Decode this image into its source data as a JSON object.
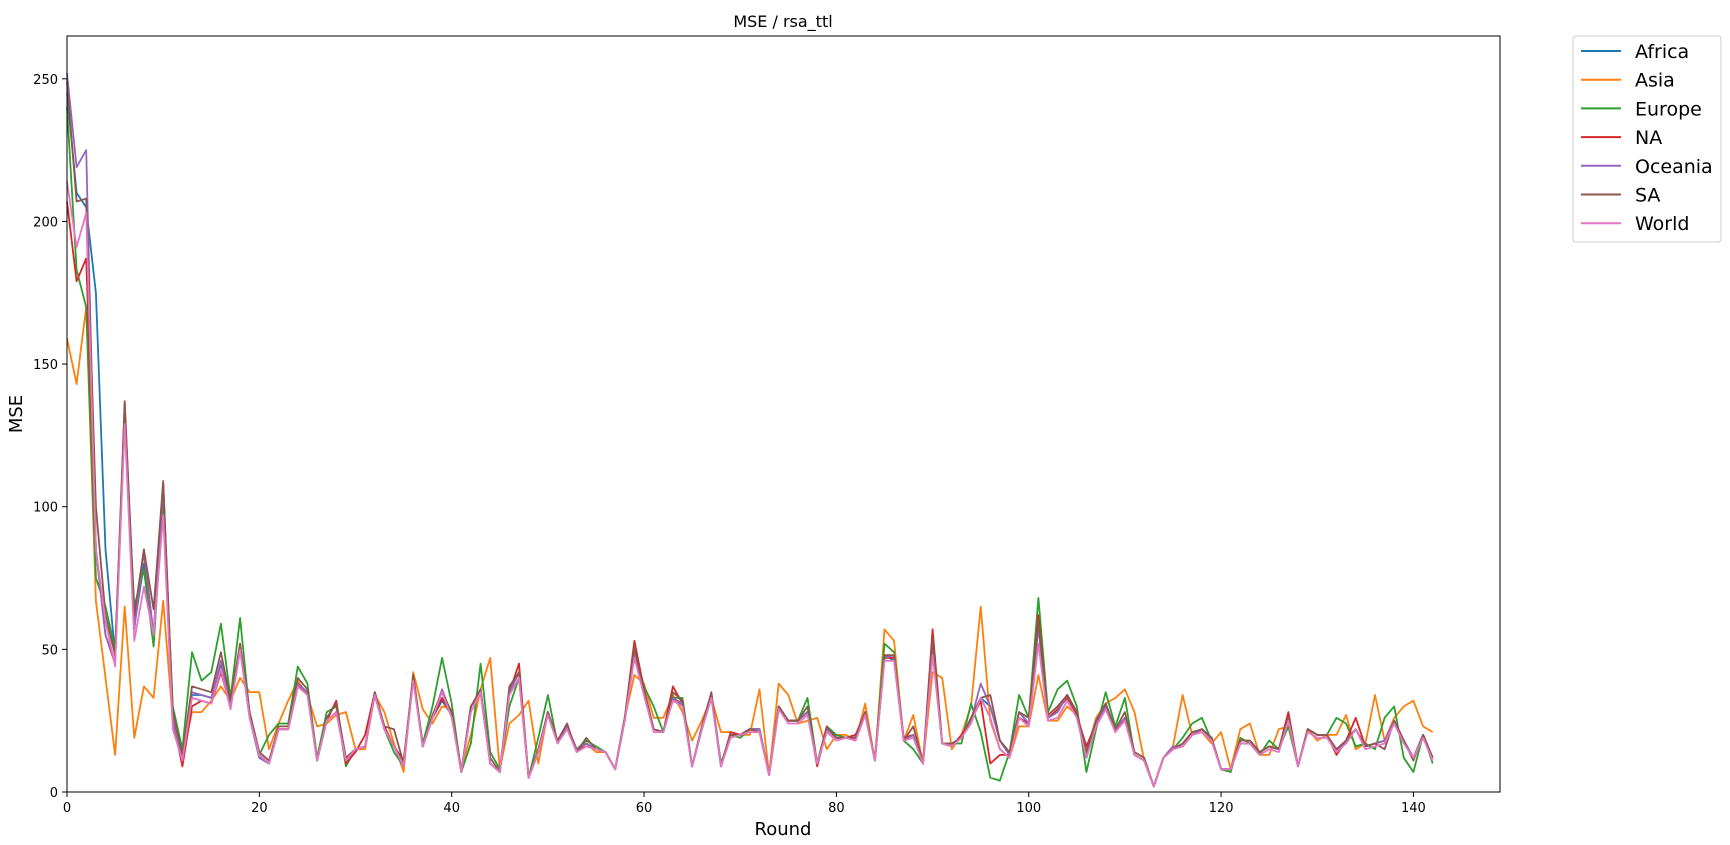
{
  "chart_data": {
    "type": "line",
    "title": "MSE / rsa_ttl",
    "xlabel": "Round",
    "ylabel": "MSE",
    "xlim": [
      0,
      149
    ],
    "ylim": [
      0,
      265
    ],
    "xticks": [
      0,
      20,
      40,
      60,
      80,
      100,
      120,
      140
    ],
    "yticks": [
      0,
      50,
      100,
      150,
      200,
      250
    ],
    "grid": false,
    "legend_position": "outside-top-right",
    "x": [
      0,
      1,
      2,
      3,
      4,
      5,
      6,
      7,
      8,
      9,
      10,
      11,
      12,
      13,
      14,
      15,
      16,
      17,
      18,
      19,
      20,
      21,
      22,
      23,
      24,
      25,
      26,
      27,
      28,
      29,
      30,
      31,
      32,
      33,
      34,
      35,
      36,
      37,
      38,
      39,
      40,
      41,
      42,
      43,
      44,
      45,
      46,
      47,
      48,
      49,
      50,
      51,
      52,
      53,
      54,
      55,
      56,
      57,
      58,
      59,
      60,
      61,
      62,
      63,
      64,
      65,
      66,
      67,
      68,
      69,
      70,
      71,
      72,
      73,
      74,
      75,
      76,
      77,
      78,
      79,
      80,
      81,
      82,
      83,
      84,
      85,
      86,
      87,
      88,
      89,
      90,
      91,
      92,
      93,
      94,
      95,
      96,
      97,
      98,
      99,
      100,
      101,
      102,
      103,
      104,
      105,
      106,
      107,
      108,
      109,
      110,
      111,
      112,
      113,
      114,
      115,
      116,
      117,
      118,
      119,
      120,
      121,
      122,
      123,
      124,
      125,
      126,
      127,
      128,
      129,
      130,
      131,
      132,
      133,
      134,
      135,
      136,
      137,
      138,
      139,
      140,
      141,
      142
    ],
    "series": [
      {
        "name": "Africa",
        "color": "#1f77b4",
        "values": [
          245,
          210,
          205,
          175,
          85,
          48,
          130,
          58,
          80,
          55,
          104,
          25,
          12,
          34,
          34,
          33,
          45,
          30,
          50,
          26,
          12,
          10,
          22,
          22,
          37,
          35,
          11,
          25,
          28,
          11,
          15,
          16,
          34,
          22,
          16,
          9,
          40,
          16,
          26,
          32,
          27,
          7,
          30,
          35,
          10,
          7,
          35,
          42,
          5,
          14,
          28,
          18,
          23,
          15,
          17,
          15,
          14,
          8,
          26,
          48,
          34,
          22,
          21,
          33,
          30,
          9,
          22,
          33,
          9,
          20,
          20,
          22,
          22,
          6,
          30,
          25,
          25,
          28,
          10,
          22,
          19,
          19,
          19,
          28,
          11,
          48,
          46,
          18,
          20,
          10,
          50,
          17,
          17,
          19,
          25,
          33,
          30,
          18,
          13,
          28,
          24,
          58,
          26,
          28,
          34,
          28,
          12,
          24,
          30,
          22,
          26,
          13,
          11,
          2,
          12,
          16,
          16,
          20,
          22,
          19,
          8,
          8,
          17,
          17,
          14,
          16,
          15,
          26,
          9,
          22,
          20,
          20,
          14,
          18,
          22,
          16,
          17,
          18,
          25,
          18,
          12,
          20,
          12
        ]
      },
      {
        "name": "Asia",
        "color": "#ff7f0e",
        "values": [
          159,
          143,
          170,
          67,
          40,
          13,
          65,
          19,
          37,
          33,
          67,
          25,
          12,
          28,
          28,
          32,
          37,
          32,
          40,
          35,
          35,
          15,
          24,
          32,
          39,
          34,
          23,
          24,
          27,
          28,
          15,
          15,
          34,
          28,
          17,
          7,
          42,
          29,
          24,
          30,
          29,
          8,
          20,
          36,
          47,
          8,
          24,
          27,
          32,
          10,
          28,
          18,
          23,
          15,
          17,
          14,
          14,
          8,
          26,
          41,
          38,
          26,
          26,
          34,
          28,
          18,
          25,
          33,
          21,
          21,
          20,
          20,
          36,
          6,
          38,
          34,
          24,
          25,
          26,
          15,
          20,
          20,
          18,
          31,
          11,
          57,
          53,
          18,
          27,
          10,
          42,
          40,
          15,
          20,
          30,
          65,
          25,
          15,
          12,
          23,
          23,
          41,
          25,
          25,
          30,
          27,
          14,
          26,
          31,
          33,
          36,
          28,
          11,
          2,
          12,
          16,
          34,
          20,
          21,
          17,
          21,
          8,
          22,
          24,
          13,
          13,
          22,
          23,
          9,
          22,
          18,
          20,
          20,
          27,
          15,
          17,
          34,
          18,
          26,
          30,
          32,
          23,
          21
        ]
      },
      {
        "name": "Europe",
        "color": "#2ca02c",
        "values": [
          240,
          183,
          170,
          75,
          65,
          50,
          130,
          65,
          78,
          51,
          104,
          30,
          15,
          49,
          39,
          42,
          59,
          33,
          61,
          27,
          13,
          20,
          24,
          24,
          44,
          38,
          12,
          28,
          30,
          9,
          15,
          16,
          35,
          22,
          14,
          9,
          41,
          17,
          30,
          47,
          31,
          7,
          17,
          45,
          14,
          8,
          30,
          40,
          5,
          19,
          34,
          17,
          23,
          15,
          18,
          16,
          14,
          8,
          25,
          50,
          37,
          30,
          21,
          33,
          33,
          9,
          22,
          34,
          10,
          20,
          19,
          22,
          22,
          6,
          29,
          25,
          25,
          33,
          10,
          23,
          20,
          19,
          20,
          27,
          11,
          52,
          49,
          18,
          15,
          10,
          50,
          17,
          17,
          17,
          31,
          21,
          5,
          4,
          14,
          34,
          26,
          68,
          28,
          36,
          39,
          30,
          7,
          22,
          35,
          23,
          33,
          13,
          11,
          2,
          12,
          15,
          19,
          24,
          26,
          18,
          8,
          7,
          19,
          17,
          13,
          18,
          15,
          23,
          9,
          22,
          20,
          20,
          26,
          24,
          16,
          17,
          15,
          26,
          30,
          12,
          7,
          20,
          10
        ]
      },
      {
        "name": "NA",
        "color": "#d62728",
        "values": [
          207,
          179,
          187,
          85,
          55,
          45,
          136,
          60,
          84,
          55,
          108,
          25,
          9,
          30,
          32,
          31,
          42,
          30,
          52,
          27,
          13,
          10,
          22,
          22,
          37,
          35,
          11,
          25,
          32,
          10,
          14,
          20,
          35,
          23,
          16,
          11,
          40,
          16,
          26,
          33,
          27,
          7,
          30,
          35,
          10,
          7,
          35,
          45,
          5,
          14,
          28,
          18,
          23,
          14,
          17,
          15,
          14,
          8,
          26,
          53,
          36,
          22,
          21,
          37,
          31,
          9,
          22,
          34,
          9,
          21,
          20,
          22,
          22,
          6,
          30,
          25,
          25,
          28,
          9,
          22,
          19,
          19,
          20,
          28,
          11,
          47,
          47,
          19,
          20,
          10,
          57,
          17,
          16,
          20,
          25,
          32,
          10,
          13,
          13,
          26,
          24,
          62,
          26,
          29,
          33,
          27,
          16,
          24,
          31,
          21,
          26,
          13,
          11,
          2,
          12,
          16,
          16,
          20,
          22,
          19,
          8,
          8,
          18,
          18,
          14,
          16,
          15,
          28,
          9,
          22,
          20,
          20,
          13,
          18,
          26,
          16,
          17,
          18,
          25,
          18,
          12,
          20,
          12
        ]
      },
      {
        "name": "Oceania",
        "color": "#9467bd",
        "values": [
          252,
          219,
          225,
          85,
          55,
          46,
          134,
          57,
          85,
          55,
          108,
          25,
          12,
          35,
          34,
          33,
          46,
          30,
          50,
          26,
          12,
          10,
          22,
          22,
          38,
          35,
          11,
          25,
          28,
          11,
          15,
          16,
          34,
          22,
          16,
          9,
          40,
          16,
          26,
          36,
          27,
          7,
          30,
          35,
          10,
          7,
          35,
          42,
          5,
          14,
          28,
          18,
          23,
          15,
          17,
          15,
          14,
          8,
          26,
          48,
          34,
          22,
          21,
          33,
          31,
          9,
          22,
          34,
          9,
          20,
          20,
          22,
          22,
          6,
          30,
          25,
          25,
          28,
          10,
          22,
          19,
          19,
          19,
          28,
          11,
          47,
          48,
          18,
          20,
          10,
          50,
          17,
          17,
          19,
          25,
          38,
          30,
          18,
          13,
          28,
          24,
          58,
          26,
          28,
          34,
          28,
          12,
          24,
          30,
          22,
          26,
          13,
          11,
          2,
          12,
          16,
          16,
          20,
          22,
          19,
          8,
          8,
          17,
          17,
          14,
          16,
          15,
          26,
          9,
          22,
          20,
          20,
          14,
          18,
          22,
          16,
          17,
          18,
          25,
          18,
          12,
          20,
          12
        ]
      },
      {
        "name": "SA",
        "color": "#8c564b",
        "values": [
          249,
          207,
          208,
          100,
          62,
          48,
          137,
          62,
          85,
          64,
          109,
          28,
          13,
          37,
          36,
          35,
          49,
          32,
          52,
          28,
          14,
          11,
          23,
          23,
          40,
          36,
          11,
          26,
          31,
          12,
          15,
          16,
          35,
          23,
          22,
          10,
          41,
          16,
          27,
          35,
          28,
          7,
          30,
          36,
          12,
          7,
          37,
          42,
          5,
          15,
          28,
          18,
          24,
          14,
          19,
          15,
          14,
          8,
          26,
          51,
          35,
          22,
          21,
          35,
          32,
          9,
          23,
          35,
          9,
          20,
          20,
          22,
          21,
          6,
          30,
          25,
          25,
          30,
          10,
          23,
          19,
          19,
          19,
          28,
          11,
          48,
          48,
          18,
          23,
          10,
          54,
          17,
          17,
          19,
          26,
          33,
          34,
          18,
          14,
          28,
          26,
          60,
          27,
          30,
          34,
          28,
          14,
          25,
          31,
          22,
          28,
          14,
          12,
          2,
          12,
          15,
          17,
          21,
          22,
          19,
          8,
          8,
          18,
          18,
          14,
          16,
          15,
          26,
          9,
          22,
          20,
          20,
          15,
          18,
          22,
          16,
          17,
          15,
          25,
          18,
          11,
          20,
          12
        ]
      },
      {
        "name": "World",
        "color": "#e377c2",
        "values": [
          214,
          191,
          203,
          85,
          60,
          44,
          129,
          53,
          72,
          55,
          97,
          22,
          11,
          33,
          32,
          31,
          43,
          29,
          50,
          26,
          13,
          10,
          22,
          22,
          37,
          34,
          11,
          25,
          28,
          11,
          15,
          16,
          34,
          22,
          16,
          9,
          39,
          16,
          26,
          35,
          26,
          7,
          28,
          35,
          10,
          7,
          34,
          40,
          5,
          14,
          27,
          17,
          22,
          14,
          16,
          15,
          14,
          8,
          25,
          47,
          34,
          21,
          21,
          32,
          30,
          9,
          22,
          33,
          9,
          19,
          20,
          21,
          21,
          6,
          29,
          24,
          24,
          27,
          10,
          21,
          18,
          19,
          18,
          27,
          11,
          46,
          46,
          18,
          19,
          10,
          48,
          17,
          16,
          19,
          24,
          33,
          26,
          15,
          12,
          26,
          23,
          52,
          25,
          26,
          32,
          26,
          12,
          23,
          29,
          21,
          25,
          13,
          11,
          2,
          12,
          15,
          16,
          20,
          21,
          18,
          8,
          8,
          17,
          17,
          13,
          15,
          14,
          25,
          9,
          21,
          19,
          19,
          14,
          17,
          22,
          15,
          16,
          17,
          24,
          17,
          12,
          19,
          11
        ]
      }
    ]
  }
}
